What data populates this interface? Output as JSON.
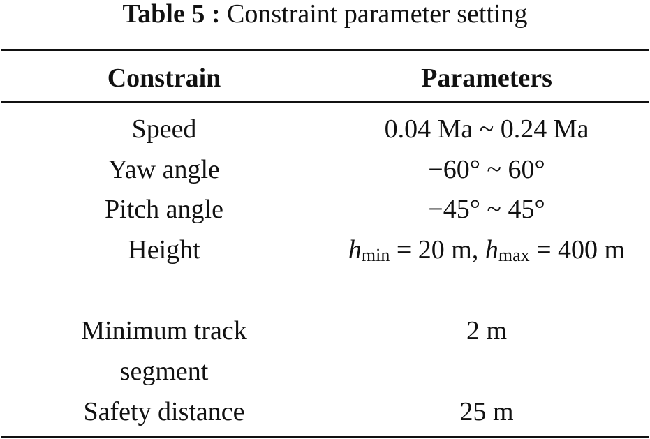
{
  "title": {
    "label": "Table 5 :",
    "text": "Constraint parameter setting"
  },
  "table": {
    "headers": [
      "Constrain",
      "Parameters"
    ],
    "rows": [
      [
        "Speed",
        "0.04 Ma ~ 0.24 Ma"
      ],
      [
        "Yaw angle",
        "−60° ~ 60°"
      ],
      [
        "Pitch angle",
        "−45° ~ 45°"
      ],
      [
        "Height",
        [
          "h",
          "min",
          " = 20 m, ",
          "h",
          "max",
          " = 400 m"
        ]
      ],
      [
        "Minimum track segment",
        "2 m"
      ],
      [
        "Safety distance",
        "25 m"
      ]
    ]
  }
}
